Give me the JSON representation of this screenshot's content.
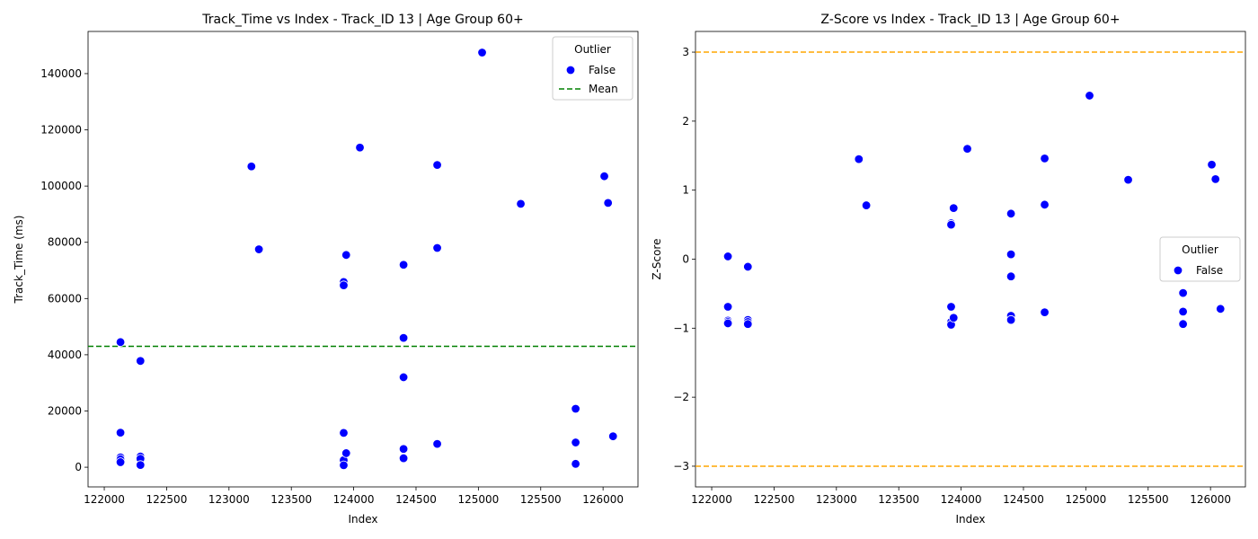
{
  "chart_data": [
    {
      "type": "scatter",
      "title": "Track_Time vs Index - Track_ID 13 | Age Group 60+",
      "xlabel": "Index",
      "ylabel": "Track_Time (ms)",
      "xlim": [
        121870,
        126280
      ],
      "ylim": [
        -7000,
        155000
      ],
      "xticks": [
        122000,
        122500,
        123000,
        123500,
        124000,
        124500,
        125000,
        125500,
        126000
      ],
      "yticks": [
        0,
        20000,
        40000,
        60000,
        80000,
        100000,
        120000,
        140000
      ],
      "grid": false,
      "legend_position": "top-right",
      "legend_title": "Outlier",
      "legend_entries": [
        "False",
        "Mean"
      ],
      "point_color": "#0000ff",
      "mean_line": {
        "label": "Mean",
        "y": 43000,
        "color": "#008000",
        "style": "dashed"
      },
      "series": [
        {
          "name": "False",
          "points": [
            [
              122130,
              44500
            ],
            [
              122130,
              12300
            ],
            [
              122130,
              3500
            ],
            [
              122130,
              2800
            ],
            [
              122130,
              1800
            ],
            [
              122290,
              37800
            ],
            [
              122290,
              3800
            ],
            [
              122290,
              3000
            ],
            [
              122290,
              800
            ],
            [
              123180,
              107000
            ],
            [
              123240,
              77500
            ],
            [
              123920,
              65900
            ],
            [
              123920,
              64700
            ],
            [
              123920,
              12200
            ],
            [
              123920,
              2500
            ],
            [
              123920,
              700
            ],
            [
              123940,
              75500
            ],
            [
              123940,
              5000
            ],
            [
              124050,
              113700
            ],
            [
              124400,
              72000
            ],
            [
              124400,
              46000
            ],
            [
              124400,
              32000
            ],
            [
              124400,
              6500
            ],
            [
              124400,
              3200
            ],
            [
              124670,
              107500
            ],
            [
              124670,
              78000
            ],
            [
              124670,
              8300
            ],
            [
              125030,
              147500
            ],
            [
              125340,
              93700
            ],
            [
              125780,
              20800
            ],
            [
              125780,
              8800
            ],
            [
              125780,
              1200
            ],
            [
              126010,
              103500
            ],
            [
              126040,
              94000
            ],
            [
              126080,
              11000
            ]
          ]
        }
      ]
    },
    {
      "type": "scatter",
      "title": "Z-Score vs Index - Track_ID 13 | Age Group 60+",
      "xlabel": "Index",
      "ylabel": "Z-Score",
      "xlim": [
        121870,
        126280
      ],
      "ylim": [
        -3.3,
        3.3
      ],
      "xticks": [
        122000,
        122500,
        123000,
        123500,
        124000,
        124500,
        125000,
        125500,
        126000
      ],
      "yticks": [
        -3,
        -2,
        -1,
        0,
        1,
        2,
        3
      ],
      "ytick_labels": [
        "−3",
        "−2",
        "−1",
        "0",
        "1",
        "2",
        "3"
      ],
      "grid": false,
      "legend_position": "center-right",
      "legend_title": "Outlier",
      "legend_entries": [
        "False"
      ],
      "point_color": "#0000ff",
      "threshold_lines": [
        {
          "y": 3,
          "color": "#ffa500",
          "style": "dashed"
        },
        {
          "y": -3,
          "color": "#ffa500",
          "style": "dashed"
        }
      ],
      "series": [
        {
          "name": "False",
          "points": [
            [
              122130,
              0.04
            ],
            [
              122130,
              -0.69
            ],
            [
              122130,
              -0.89
            ],
            [
              122130,
              -0.91
            ],
            [
              122130,
              -0.93
            ],
            [
              122290,
              -0.11
            ],
            [
              122290,
              -0.88
            ],
            [
              122290,
              -0.91
            ],
            [
              122290,
              -0.94
            ],
            [
              123180,
              1.45
            ],
            [
              123240,
              0.78
            ],
            [
              123920,
              0.52
            ],
            [
              123920,
              0.5
            ],
            [
              123920,
              -0.69
            ],
            [
              123920,
              -0.91
            ],
            [
              123920,
              -0.95
            ],
            [
              123940,
              0.74
            ],
            [
              123940,
              -0.85
            ],
            [
              124050,
              1.6
            ],
            [
              124400,
              0.66
            ],
            [
              124400,
              0.07
            ],
            [
              124400,
              -0.25
            ],
            [
              124400,
              -0.82
            ],
            [
              124400,
              -0.88
            ],
            [
              124670,
              1.46
            ],
            [
              124670,
              0.79
            ],
            [
              124670,
              -0.77
            ],
            [
              125030,
              2.37
            ],
            [
              125340,
              1.15
            ],
            [
              125780,
              -0.49
            ],
            [
              125780,
              -0.76
            ],
            [
              125780,
              -0.94
            ],
            [
              126010,
              1.37
            ],
            [
              126040,
              1.16
            ],
            [
              126080,
              -0.72
            ]
          ]
        }
      ]
    }
  ]
}
